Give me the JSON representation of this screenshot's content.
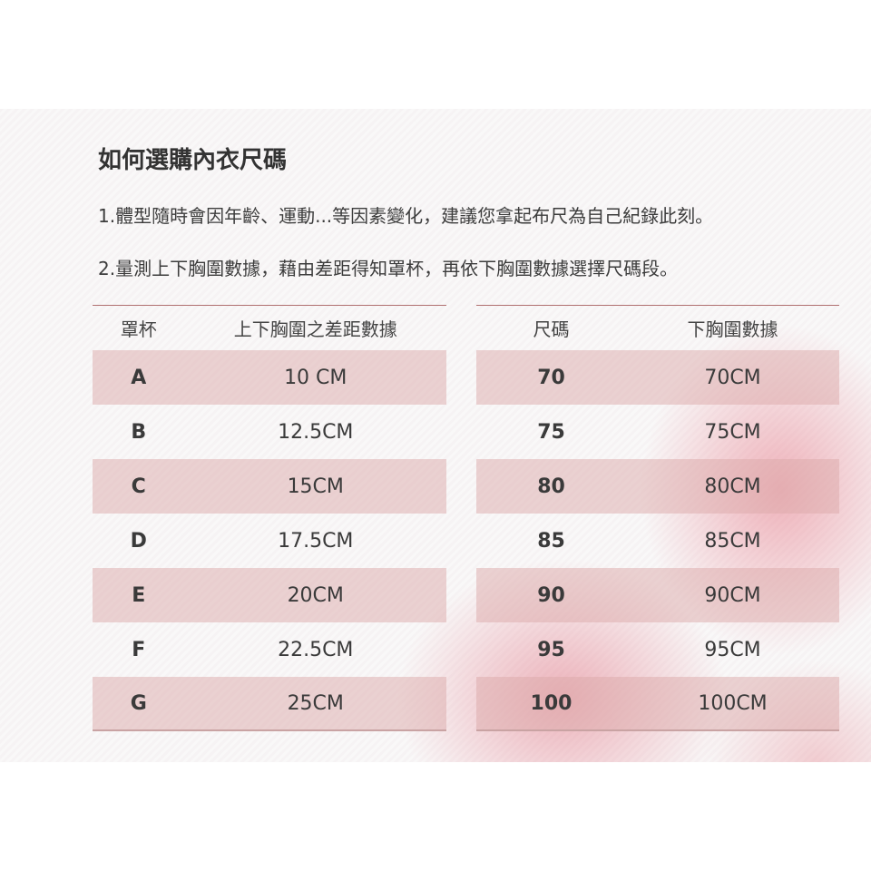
{
  "title": "如何選購內衣尺碼",
  "para1": "1.體型隨時會因年齡、運動...等因素變化，建議您拿起布尺為自己紀錄此刻。",
  "para2": "2.量測上下胸圍數據，藉由差距得知罩杯，再依下胸圍數據選擇尺碼段。",
  "cup_table": {
    "headers": [
      "罩杯",
      "上下胸圍之差距數據"
    ],
    "rows": [
      [
        "A",
        "10 CM"
      ],
      [
        "B",
        "12.5CM"
      ],
      [
        "C",
        "15CM"
      ],
      [
        "D",
        "17.5CM"
      ],
      [
        "E",
        "20CM"
      ],
      [
        "F",
        "22.5CM"
      ],
      [
        "G",
        "25CM"
      ]
    ]
  },
  "size_table": {
    "headers": [
      "尺碼",
      "下胸圍數據"
    ],
    "rows": [
      [
        "70",
        "70CM"
      ],
      [
        "75",
        "75CM"
      ],
      [
        "80",
        "80CM"
      ],
      [
        "85",
        "85CM"
      ],
      [
        "90",
        "90CM"
      ],
      [
        "95",
        "95CM"
      ],
      [
        "100",
        "100CM"
      ]
    ]
  },
  "colors": {
    "row_shade": "#ecd3d3",
    "rule": "#b07070"
  }
}
